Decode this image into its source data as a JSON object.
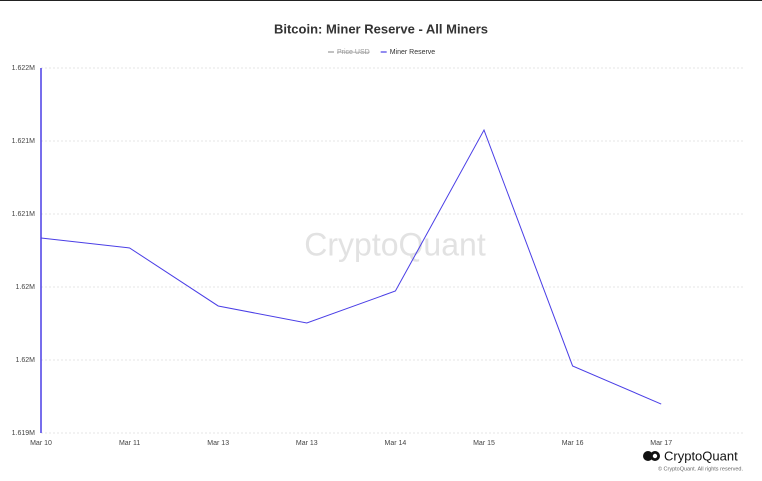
{
  "chart_data": {
    "type": "line",
    "title": "Bitcoin: Miner Reserve - All Miners",
    "categories": [
      "Mar 10",
      "Mar 11",
      "Mar 13",
      "Mar 13",
      "Mar 14",
      "Mar 15",
      "Mar 16",
      "Mar 17"
    ],
    "series": [
      {
        "name": "Price USD",
        "color": "#999999",
        "hidden": true,
        "values": [
          null,
          null,
          null,
          null,
          null,
          null,
          null,
          null
        ]
      },
      {
        "name": "Miner Reserve",
        "color": "#4a3ee6",
        "hidden": false,
        "values": [
          1620603,
          1620521,
          1620044,
          1619904,
          1620167,
          1621490,
          1619551,
          1619238
        ]
      }
    ],
    "ylim": [
      1619000,
      1622000
    ],
    "yticks": [
      {
        "value": 1619000,
        "label": "1.619M"
      },
      {
        "value": 1619600,
        "label": "1.62M"
      },
      {
        "value": 1620200,
        "label": "1.62M"
      },
      {
        "value": 1620800,
        "label": "1.621M"
      },
      {
        "value": 1621400,
        "label": "1.621M"
      },
      {
        "value": 1622000,
        "label": "1.622M"
      }
    ],
    "grid": true,
    "watermark": "CryptoQuant",
    "brand": "CryptoQuant",
    "copyright": "© CryptoQuant. All rights reserved."
  }
}
